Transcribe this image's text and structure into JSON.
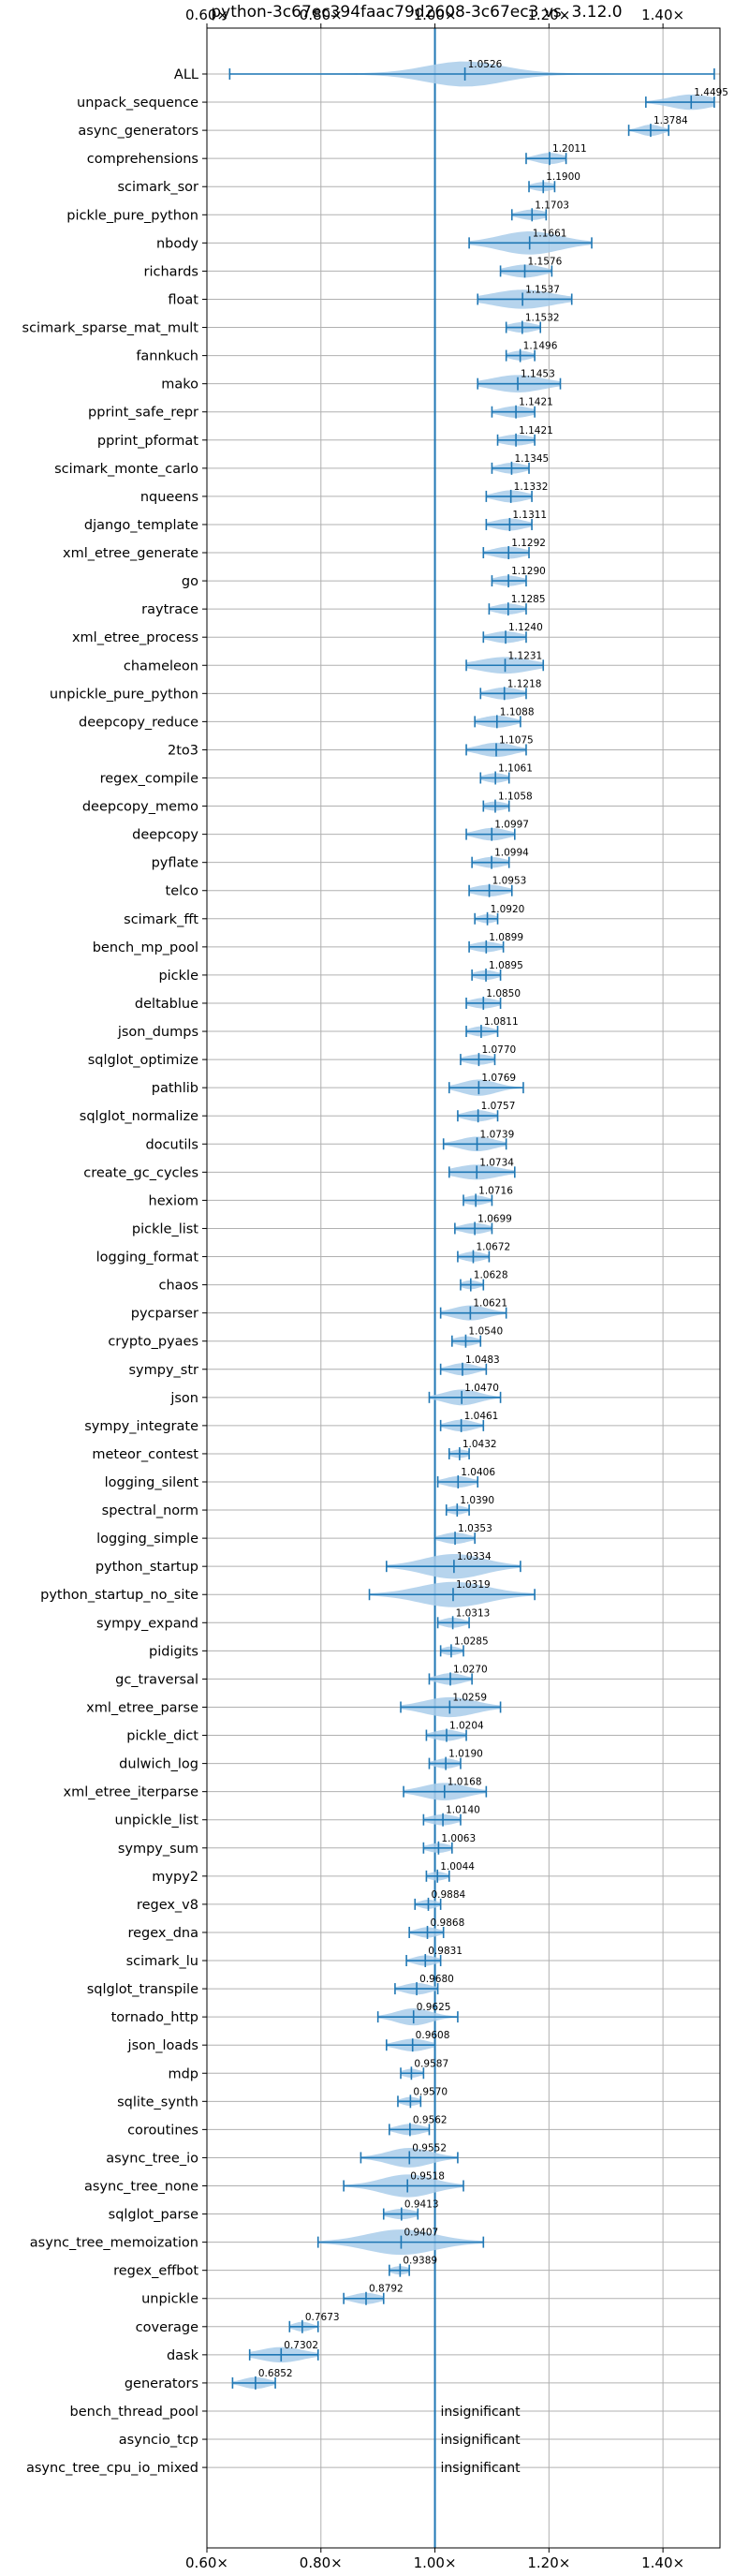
{
  "chart_data": {
    "type": "violin",
    "title": "python-3c67ec394faac79d2608-3c67ec3 vs. 3.12.0",
    "xlim": [
      0.6,
      1.5
    ],
    "x_ticks": [
      0.6,
      0.8,
      1.0,
      1.2,
      1.4
    ],
    "x_tick_labels": [
      "0.60×",
      "0.80×",
      "1.00×",
      "1.20×",
      "1.40×"
    ],
    "x_axis_position": "top and bottom",
    "reference_line": 1.0,
    "grid": true,
    "colors": {
      "violin": "#a9cdea",
      "whisker": "#1f77b4",
      "reference": "#1f77b4"
    },
    "insignificant_text": "insignificant",
    "benchmarks": [
      {
        "name": "ALL",
        "value": 1.0526,
        "label": "1.0526",
        "min": 0.64,
        "max": 1.49,
        "spread": 0.09
      },
      {
        "name": "unpack_sequence",
        "value": 1.4495,
        "label": "1.4495",
        "min": 1.37,
        "max": 1.49,
        "spread": 0.05
      },
      {
        "name": "async_generators",
        "value": 1.3784,
        "label": "1.3784",
        "min": 1.34,
        "max": 1.41,
        "spread": 0.025
      },
      {
        "name": "comprehensions",
        "value": 1.2011,
        "label": "1.2011",
        "min": 1.16,
        "max": 1.23,
        "spread": 0.03
      },
      {
        "name": "scimark_sor",
        "value": 1.19,
        "label": "1.1900",
        "min": 1.165,
        "max": 1.21,
        "spread": 0.025
      },
      {
        "name": "pickle_pure_python",
        "value": 1.1703,
        "label": "1.1703",
        "min": 1.135,
        "max": 1.195,
        "spread": 0.03
      },
      {
        "name": "nbody",
        "value": 1.1661,
        "label": "1.1661",
        "min": 1.06,
        "max": 1.275,
        "spread": 0.07
      },
      {
        "name": "richards",
        "value": 1.1576,
        "label": "1.1576",
        "min": 1.115,
        "max": 1.205,
        "spread": 0.04
      },
      {
        "name": "float",
        "value": 1.1537,
        "label": "1.1537",
        "min": 1.075,
        "max": 1.24,
        "spread": 0.07
      },
      {
        "name": "scimark_sparse_mat_mult",
        "value": 1.1532,
        "label": "1.1532",
        "min": 1.125,
        "max": 1.185,
        "spread": 0.03
      },
      {
        "name": "fannkuch",
        "value": 1.1496,
        "label": "1.1496",
        "min": 1.125,
        "max": 1.175,
        "spread": 0.025
      },
      {
        "name": "mako",
        "value": 1.1453,
        "label": "1.1453",
        "min": 1.075,
        "max": 1.22,
        "spread": 0.06
      },
      {
        "name": "pprint_safe_repr",
        "value": 1.1421,
        "label": "1.1421",
        "min": 1.1,
        "max": 1.175,
        "spread": 0.035
      },
      {
        "name": "pprint_pformat",
        "value": 1.1421,
        "label": "1.1421",
        "min": 1.11,
        "max": 1.175,
        "spread": 0.035
      },
      {
        "name": "scimark_monte_carlo",
        "value": 1.1345,
        "label": "1.1345",
        "min": 1.1,
        "max": 1.165,
        "spread": 0.03
      },
      {
        "name": "nqueens",
        "value": 1.1332,
        "label": "1.1332",
        "min": 1.09,
        "max": 1.17,
        "spread": 0.035
      },
      {
        "name": "django_template",
        "value": 1.1311,
        "label": "1.1311",
        "min": 1.09,
        "max": 1.17,
        "spread": 0.035
      },
      {
        "name": "xml_etree_generate",
        "value": 1.1292,
        "label": "1.1292",
        "min": 1.085,
        "max": 1.165,
        "spread": 0.035
      },
      {
        "name": "go",
        "value": 1.129,
        "label": "1.1290",
        "min": 1.1,
        "max": 1.16,
        "spread": 0.03
      },
      {
        "name": "raytrace",
        "value": 1.1285,
        "label": "1.1285",
        "min": 1.095,
        "max": 1.16,
        "spread": 0.03
      },
      {
        "name": "xml_etree_process",
        "value": 1.124,
        "label": "1.1240",
        "min": 1.085,
        "max": 1.16,
        "spread": 0.035
      },
      {
        "name": "chameleon",
        "value": 1.1231,
        "label": "1.1231",
        "min": 1.055,
        "max": 1.19,
        "spread": 0.06
      },
      {
        "name": "unpickle_pure_python",
        "value": 1.1218,
        "label": "1.1218",
        "min": 1.08,
        "max": 1.16,
        "spread": 0.035
      },
      {
        "name": "deepcopy_reduce",
        "value": 1.1088,
        "label": "1.1088",
        "min": 1.07,
        "max": 1.15,
        "spread": 0.035
      },
      {
        "name": "2to3",
        "value": 1.1075,
        "label": "1.1075",
        "min": 1.055,
        "max": 1.16,
        "spread": 0.04
      },
      {
        "name": "regex_compile",
        "value": 1.1061,
        "label": "1.1061",
        "min": 1.08,
        "max": 1.13,
        "spread": 0.025
      },
      {
        "name": "deepcopy_memo",
        "value": 1.1058,
        "label": "1.1058",
        "min": 1.085,
        "max": 1.13,
        "spread": 0.025
      },
      {
        "name": "deepcopy",
        "value": 1.0997,
        "label": "1.0997",
        "min": 1.055,
        "max": 1.14,
        "spread": 0.035
      },
      {
        "name": "pyflate",
        "value": 1.0994,
        "label": "1.0994",
        "min": 1.065,
        "max": 1.13,
        "spread": 0.03
      },
      {
        "name": "telco",
        "value": 1.0953,
        "label": "1.0953",
        "min": 1.06,
        "max": 1.135,
        "spread": 0.035
      },
      {
        "name": "scimark_fft",
        "value": 1.092,
        "label": "1.0920",
        "min": 1.07,
        "max": 1.11,
        "spread": 0.02
      },
      {
        "name": "bench_mp_pool",
        "value": 1.0899,
        "label": "1.0899",
        "min": 1.06,
        "max": 1.12,
        "spread": 0.03
      },
      {
        "name": "pickle",
        "value": 1.0895,
        "label": "1.0895",
        "min": 1.065,
        "max": 1.115,
        "spread": 0.025
      },
      {
        "name": "deltablue",
        "value": 1.085,
        "label": "1.0850",
        "min": 1.055,
        "max": 1.115,
        "spread": 0.03
      },
      {
        "name": "json_dumps",
        "value": 1.0811,
        "label": "1.0811",
        "min": 1.055,
        "max": 1.11,
        "spread": 0.025
      },
      {
        "name": "sqlglot_optimize",
        "value": 1.077,
        "label": "1.0770",
        "min": 1.045,
        "max": 1.105,
        "spread": 0.03
      },
      {
        "name": "pathlib",
        "value": 1.0769,
        "label": "1.0769",
        "min": 1.025,
        "max": 1.155,
        "spread": 0.04
      },
      {
        "name": "sqlglot_normalize",
        "value": 1.0757,
        "label": "1.0757",
        "min": 1.04,
        "max": 1.11,
        "spread": 0.03
      },
      {
        "name": "docutils",
        "value": 1.0739,
        "label": "1.0739",
        "min": 1.015,
        "max": 1.125,
        "spread": 0.04
      },
      {
        "name": "create_gc_cycles",
        "value": 1.0734,
        "label": "1.0734",
        "min": 1.025,
        "max": 1.14,
        "spread": 0.05
      },
      {
        "name": "hexiom",
        "value": 1.0716,
        "label": "1.0716",
        "min": 1.05,
        "max": 1.1,
        "spread": 0.025
      },
      {
        "name": "pickle_list",
        "value": 1.0699,
        "label": "1.0699",
        "min": 1.035,
        "max": 1.1,
        "spread": 0.03
      },
      {
        "name": "logging_format",
        "value": 1.0672,
        "label": "1.0672",
        "min": 1.04,
        "max": 1.095,
        "spread": 0.025
      },
      {
        "name": "chaos",
        "value": 1.0628,
        "label": "1.0628",
        "min": 1.045,
        "max": 1.085,
        "spread": 0.02
      },
      {
        "name": "pycparser",
        "value": 1.0621,
        "label": "1.0621",
        "min": 1.01,
        "max": 1.125,
        "spread": 0.04
      },
      {
        "name": "crypto_pyaes",
        "value": 1.054,
        "label": "1.0540",
        "min": 1.03,
        "max": 1.08,
        "spread": 0.025
      },
      {
        "name": "sympy_str",
        "value": 1.0483,
        "label": "1.0483",
        "min": 1.01,
        "max": 1.09,
        "spread": 0.03
      },
      {
        "name": "json",
        "value": 1.047,
        "label": "1.0470",
        "min": 0.99,
        "max": 1.115,
        "spread": 0.04
      },
      {
        "name": "sympy_integrate",
        "value": 1.0461,
        "label": "1.0461",
        "min": 1.01,
        "max": 1.085,
        "spread": 0.03
      },
      {
        "name": "meteor_contest",
        "value": 1.0432,
        "label": "1.0432",
        "min": 1.025,
        "max": 1.06,
        "spread": 0.02
      },
      {
        "name": "logging_silent",
        "value": 1.0406,
        "label": "1.0406",
        "min": 1.005,
        "max": 1.075,
        "spread": 0.03
      },
      {
        "name": "spectral_norm",
        "value": 1.039,
        "label": "1.0390",
        "min": 1.02,
        "max": 1.06,
        "spread": 0.02
      },
      {
        "name": "logging_simple",
        "value": 1.0353,
        "label": "1.0353",
        "min": 1.0,
        "max": 1.07,
        "spread": 0.03
      },
      {
        "name": "python_startup",
        "value": 1.0334,
        "label": "1.0334",
        "min": 0.915,
        "max": 1.15,
        "spread": 0.07
      },
      {
        "name": "python_startup_no_site",
        "value": 1.0319,
        "label": "1.0319",
        "min": 0.885,
        "max": 1.175,
        "spread": 0.08
      },
      {
        "name": "sympy_expand",
        "value": 1.0313,
        "label": "1.0313",
        "min": 1.005,
        "max": 1.06,
        "spread": 0.025
      },
      {
        "name": "pidigits",
        "value": 1.0285,
        "label": "1.0285",
        "min": 1.01,
        "max": 1.05,
        "spread": 0.02
      },
      {
        "name": "gc_traversal",
        "value": 1.027,
        "label": "1.0270",
        "min": 0.99,
        "max": 1.065,
        "spread": 0.03
      },
      {
        "name": "xml_etree_parse",
        "value": 1.0259,
        "label": "1.0259",
        "min": 0.94,
        "max": 1.115,
        "spread": 0.06
      },
      {
        "name": "pickle_dict",
        "value": 1.0204,
        "label": "1.0204",
        "min": 0.985,
        "max": 1.055,
        "spread": 0.03
      },
      {
        "name": "dulwich_log",
        "value": 1.019,
        "label": "1.0190",
        "min": 0.99,
        "max": 1.045,
        "spread": 0.025
      },
      {
        "name": "xml_etree_iterparse",
        "value": 1.0168,
        "label": "1.0168",
        "min": 0.945,
        "max": 1.09,
        "spread": 0.05
      },
      {
        "name": "unpickle_list",
        "value": 1.014,
        "label": "1.0140",
        "min": 0.98,
        "max": 1.045,
        "spread": 0.03
      },
      {
        "name": "sympy_sum",
        "value": 1.0063,
        "label": "1.0063",
        "min": 0.98,
        "max": 1.03,
        "spread": 0.025
      },
      {
        "name": "mypy2",
        "value": 1.0044,
        "label": "1.0044",
        "min": 0.985,
        "max": 1.025,
        "spread": 0.02
      },
      {
        "name": "regex_v8",
        "value": 0.9884,
        "label": "0.9884",
        "min": 0.965,
        "max": 1.01,
        "spread": 0.02
      },
      {
        "name": "regex_dna",
        "value": 0.9868,
        "label": "0.9868",
        "min": 0.955,
        "max": 1.015,
        "spread": 0.025
      },
      {
        "name": "scimark_lu",
        "value": 0.9831,
        "label": "0.9831",
        "min": 0.95,
        "max": 1.01,
        "spread": 0.025
      },
      {
        "name": "sqlglot_transpile",
        "value": 0.968,
        "label": "0.9680",
        "min": 0.93,
        "max": 1.005,
        "spread": 0.03
      },
      {
        "name": "tornado_http",
        "value": 0.9625,
        "label": "0.9625",
        "min": 0.9,
        "max": 1.04,
        "spread": 0.04
      },
      {
        "name": "json_loads",
        "value": 0.9608,
        "label": "0.9608",
        "min": 0.915,
        "max": 1.0,
        "spread": 0.035
      },
      {
        "name": "mdp",
        "value": 0.9587,
        "label": "0.9587",
        "min": 0.94,
        "max": 0.98,
        "spread": 0.02
      },
      {
        "name": "sqlite_synth",
        "value": 0.957,
        "label": "0.9570",
        "min": 0.935,
        "max": 0.975,
        "spread": 0.02
      },
      {
        "name": "coroutines",
        "value": 0.9562,
        "label": "0.9562",
        "min": 0.92,
        "max": 0.99,
        "spread": 0.03
      },
      {
        "name": "async_tree_io",
        "value": 0.9552,
        "label": "0.9552",
        "min": 0.87,
        "max": 1.04,
        "spread": 0.05
      },
      {
        "name": "async_tree_none",
        "value": 0.9518,
        "label": "0.9518",
        "min": 0.84,
        "max": 1.05,
        "spread": 0.06
      },
      {
        "name": "sqlglot_parse",
        "value": 0.9413,
        "label": "0.9413",
        "min": 0.91,
        "max": 0.97,
        "spread": 0.03
      },
      {
        "name": "async_tree_memoization",
        "value": 0.9407,
        "label": "0.9407",
        "min": 0.795,
        "max": 1.085,
        "spread": 0.08
      },
      {
        "name": "regex_effbot",
        "value": 0.9389,
        "label": "0.9389",
        "min": 0.92,
        "max": 0.955,
        "spread": 0.02
      },
      {
        "name": "unpickle",
        "value": 0.8792,
        "label": "0.8792",
        "min": 0.84,
        "max": 0.91,
        "spread": 0.03
      },
      {
        "name": "coverage",
        "value": 0.7673,
        "label": "0.7673",
        "min": 0.745,
        "max": 0.795,
        "spread": 0.02
      },
      {
        "name": "dask",
        "value": 0.7302,
        "label": "0.7302",
        "min": 0.675,
        "max": 0.795,
        "spread": 0.05
      },
      {
        "name": "generators",
        "value": 0.6852,
        "label": "0.6852",
        "min": 0.645,
        "max": 0.72,
        "spread": 0.03
      },
      {
        "name": "bench_thread_pool",
        "value": null,
        "label": "insignificant"
      },
      {
        "name": "asyncio_tcp",
        "value": null,
        "label": "insignificant"
      },
      {
        "name": "async_tree_cpu_io_mixed",
        "value": null,
        "label": "insignificant"
      }
    ]
  }
}
